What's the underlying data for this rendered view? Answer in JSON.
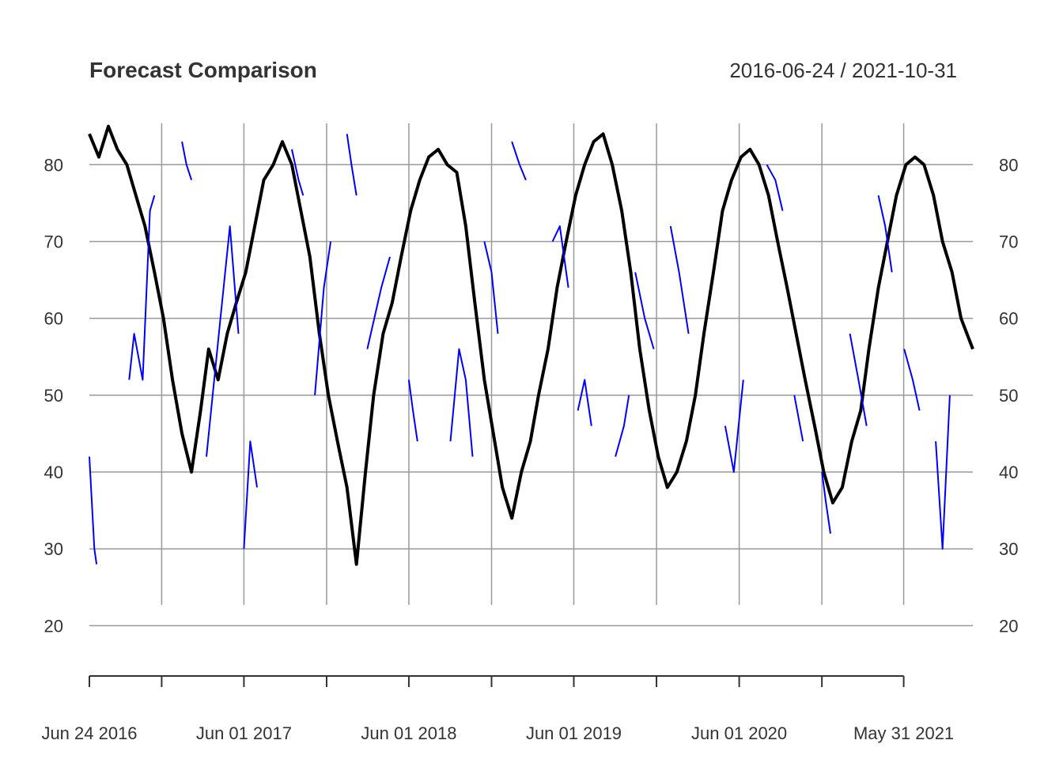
{
  "chart_data": {
    "type": "line",
    "title": "Forecast Comparison",
    "date_range_label": "2016-06-24 / 2021-10-31",
    "xlim": [
      "2016-06-24",
      "2021-10-31"
    ],
    "ylim": [
      15,
      86
    ],
    "y_ticks": [
      20,
      30,
      40,
      50,
      60,
      70,
      80
    ],
    "y_tick_labels": [
      "20",
      "30",
      "40",
      "50",
      "60",
      "70",
      "80"
    ],
    "x_ticks": [
      {
        "date": "2016-06-24",
        "label": "Jun 24 2016",
        "labeled": true
      },
      {
        "date": "2016-12-01",
        "label": "",
        "labeled": false
      },
      {
        "date": "2017-06-01",
        "label": "Jun 01 2017",
        "labeled": true
      },
      {
        "date": "2017-12-01",
        "label": "",
        "labeled": false
      },
      {
        "date": "2018-06-01",
        "label": "Jun 01 2018",
        "labeled": true
      },
      {
        "date": "2018-12-01",
        "label": "",
        "labeled": false
      },
      {
        "date": "2019-06-01",
        "label": "Jun 01 2019",
        "labeled": true
      },
      {
        "date": "2019-12-01",
        "label": "",
        "labeled": false
      },
      {
        "date": "2020-06-01",
        "label": "Jun 01 2020",
        "labeled": true
      },
      {
        "date": "2020-12-01",
        "label": "",
        "labeled": false
      },
      {
        "date": "2021-05-31",
        "label": "May 31 2021",
        "labeled": true
      }
    ],
    "grid": true,
    "series": [
      {
        "color": "#000000",
        "x": [
          "2016-06-24",
          "2016-07-15",
          "2016-08-05",
          "2016-08-25",
          "2016-09-15",
          "2016-10-05",
          "2016-10-25",
          "2016-11-15",
          "2016-12-05",
          "2016-12-25",
          "2017-01-15",
          "2017-02-05",
          "2017-02-25",
          "2017-03-15",
          "2017-04-05",
          "2017-04-25",
          "2017-05-15",
          "2017-06-05",
          "2017-06-25",
          "2017-07-15",
          "2017-08-05",
          "2017-08-25",
          "2017-09-15",
          "2017-10-05",
          "2017-10-25",
          "2017-11-15",
          "2017-12-05",
          "2017-12-25",
          "2018-01-15",
          "2018-02-05",
          "2018-02-25",
          "2018-03-15",
          "2018-04-05",
          "2018-04-25",
          "2018-05-15",
          "2018-06-05",
          "2018-06-25",
          "2018-07-15",
          "2018-08-05",
          "2018-08-25",
          "2018-09-15",
          "2018-10-05",
          "2018-10-25",
          "2018-11-15",
          "2018-12-05",
          "2018-12-25",
          "2019-01-15",
          "2019-02-05",
          "2019-02-25",
          "2019-03-15",
          "2019-04-05",
          "2019-04-25",
          "2019-05-15",
          "2019-06-05",
          "2019-06-25",
          "2019-07-15",
          "2019-08-05",
          "2019-08-25",
          "2019-09-15",
          "2019-10-05",
          "2019-10-25",
          "2019-11-15",
          "2019-12-05",
          "2019-12-25",
          "2020-01-15",
          "2020-02-05",
          "2020-02-25",
          "2020-03-15",
          "2020-04-05",
          "2020-04-25",
          "2020-05-15",
          "2020-06-05",
          "2020-06-25",
          "2020-07-15",
          "2020-08-05",
          "2020-08-25",
          "2020-09-15",
          "2020-10-05",
          "2020-10-25",
          "2020-11-15",
          "2020-12-05",
          "2020-12-25",
          "2021-01-15",
          "2021-02-05",
          "2021-02-25",
          "2021-03-15",
          "2021-04-05",
          "2021-04-25",
          "2021-05-15",
          "2021-06-05",
          "2021-06-25",
          "2021-07-15",
          "2021-08-05",
          "2021-08-25",
          "2021-09-15",
          "2021-10-05",
          "2021-10-31"
        ],
        "y": [
          84,
          81,
          85,
          82,
          80,
          76,
          72,
          66,
          60,
          52,
          45,
          40,
          48,
          56,
          52,
          58,
          62,
          66,
          72,
          78,
          80,
          83,
          80,
          74,
          68,
          58,
          50,
          44,
          38,
          28,
          40,
          50,
          58,
          62,
          68,
          74,
          78,
          81,
          82,
          80,
          79,
          72,
          62,
          52,
          45,
          38,
          34,
          40,
          44,
          50,
          56,
          64,
          70,
          76,
          80,
          83,
          84,
          80,
          74,
          66,
          56,
          48,
          42,
          38,
          40,
          44,
          50,
          58,
          66,
          74,
          78,
          81,
          82,
          80,
          76,
          70,
          64,
          58,
          52,
          46,
          40,
          36,
          38,
          44,
          48,
          56,
          64,
          70,
          76,
          80,
          81,
          80,
          76,
          70,
          66,
          60,
          56
        ]
      },
      {
        "color": "#0000ff",
        "x": [
          "2016-06-24",
          "2016-07-05",
          "2016-07-10",
          null,
          "2016-09-20",
          "2016-10-01",
          "2016-10-20",
          "2016-11-05",
          "2016-11-15",
          null,
          "2017-01-15",
          "2017-01-25",
          "2017-02-05",
          null,
          "2017-03-10",
          "2017-04-10",
          "2017-05-01",
          "2017-05-20",
          null,
          "2017-06-01",
          "2017-06-15",
          "2017-06-30",
          null,
          "2017-09-15",
          "2017-09-30",
          "2017-10-10",
          null,
          "2017-11-05",
          "2017-11-25",
          "2017-12-10",
          null,
          "2018-01-15",
          "2018-01-25",
          "2018-02-05",
          null,
          "2018-03-01",
          "2018-04-01",
          "2018-04-20",
          null,
          "2018-06-01",
          "2018-06-10",
          "2018-06-20",
          null,
          "2018-09-01",
          "2018-09-20",
          "2018-10-05",
          "2018-10-20",
          null,
          "2018-11-15",
          "2018-12-01",
          "2018-12-15",
          null,
          "2019-01-15",
          "2019-02-01",
          "2019-02-15",
          null,
          "2019-04-15",
          "2019-05-01",
          "2019-05-20",
          null,
          "2019-06-10",
          "2019-06-25",
          "2019-07-10",
          null,
          "2019-09-01",
          "2019-09-20",
          "2019-10-01",
          null,
          "2019-10-15",
          "2019-11-05",
          "2019-11-25",
          null,
          "2020-01-01",
          "2020-01-20",
          "2020-02-10",
          null,
          "2020-05-01",
          "2020-05-20",
          "2020-06-10",
          null,
          "2020-08-01",
          "2020-08-20",
          "2020-09-05",
          null,
          "2020-10-01",
          "2020-10-20",
          null,
          "2020-12-01",
          "2020-12-10",
          "2020-12-20",
          null,
          "2021-02-01",
          "2021-02-20",
          "2021-03-10",
          null,
          "2021-04-05",
          "2021-04-20",
          "2021-05-05",
          null,
          "2021-06-01",
          "2021-06-20",
          "2021-07-05",
          null,
          "2021-08-10",
          "2021-08-25",
          "2021-09-10"
        ],
        "y": [
          42,
          30,
          28,
          null,
          52,
          58,
          52,
          74,
          76,
          null,
          83,
          80,
          78,
          null,
          42,
          60,
          72,
          58,
          null,
          30,
          44,
          38,
          null,
          82,
          78,
          76,
          null,
          50,
          64,
          70,
          null,
          84,
          80,
          76,
          null,
          56,
          64,
          68,
          null,
          52,
          48,
          44,
          null,
          44,
          56,
          52,
          42,
          null,
          70,
          66,
          58,
          null,
          83,
          80,
          78,
          null,
          70,
          72,
          64,
          null,
          48,
          52,
          46,
          null,
          42,
          46,
          50,
          null,
          66,
          60,
          56,
          null,
          72,
          66,
          58,
          null,
          46,
          40,
          52,
          null,
          80,
          78,
          74,
          null,
          50,
          44,
          null,
          40,
          36,
          32,
          null,
          58,
          52,
          46,
          null,
          76,
          72,
          66,
          null,
          56,
          52,
          48,
          null,
          44,
          30,
          50
        ]
      }
    ]
  }
}
